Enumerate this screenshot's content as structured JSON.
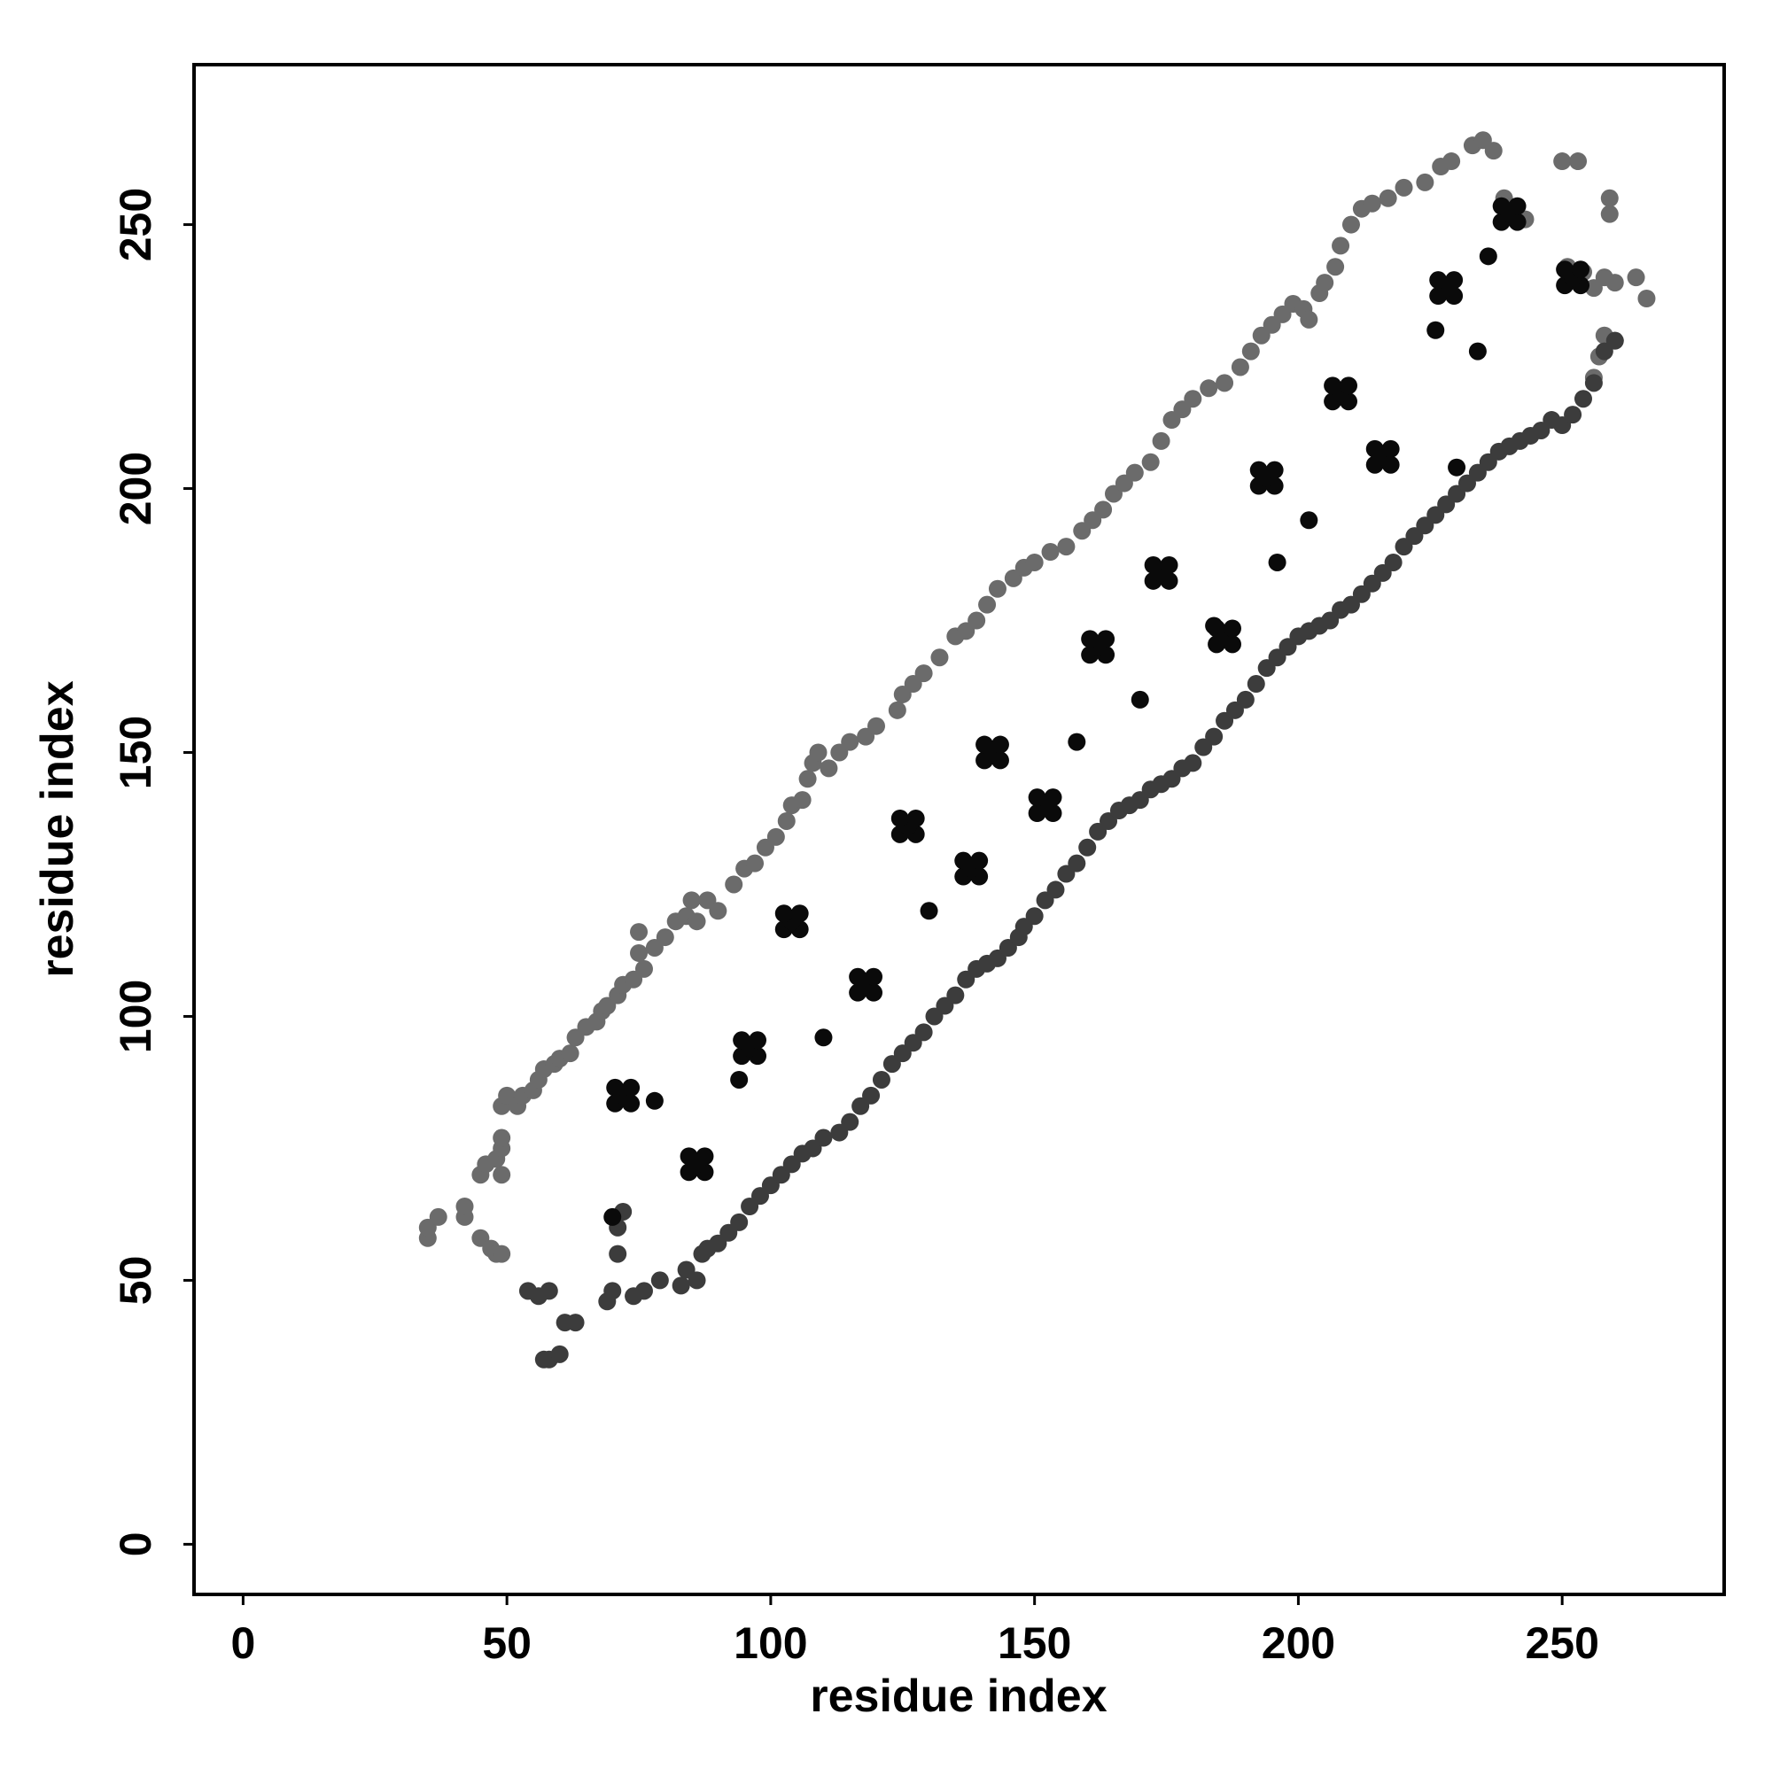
{
  "chart_data": {
    "type": "scatter",
    "x_label": "residue index",
    "y_label": "residue index",
    "xlim": [
      -9.3,
      280.7
    ],
    "ylim": [
      -9.5,
      280.3
    ],
    "xticks": [
      0,
      50,
      100,
      150,
      200,
      250
    ],
    "yticks": [
      0,
      50,
      100,
      150,
      200,
      250
    ],
    "series": [
      {
        "color": "#6b6b6b",
        "x": [
          35,
          35,
          37,
          42,
          42,
          45,
          47,
          48,
          49,
          45,
          46,
          48,
          49,
          49,
          49,
          49,
          50,
          52,
          53,
          55,
          56,
          57,
          59,
          60,
          62,
          63,
          65,
          67,
          68,
          69,
          71,
          72,
          74,
          76,
          75,
          75,
          78,
          80,
          82,
          84,
          85,
          86,
          88,
          90,
          93,
          95,
          97,
          99,
          101,
          103,
          104,
          106,
          107,
          108,
          109,
          111,
          113,
          115,
          118,
          120,
          124,
          125,
          127,
          129,
          132,
          135,
          137,
          139,
          141,
          143,
          146,
          148,
          150,
          153,
          156,
          159,
          161,
          163,
          165,
          167,
          169,
          172,
          174,
          176,
          178,
          180,
          183,
          186,
          189,
          191,
          193,
          195,
          197,
          199,
          201,
          202,
          204,
          205,
          207,
          208,
          210,
          212,
          214,
          217,
          220,
          224,
          227,
          229,
          233,
          235,
          237,
          239,
          241,
          243,
          250,
          253,
          259,
          259,
          251,
          254,
          256,
          258,
          260,
          264,
          266,
          258,
          260,
          257,
          256
        ],
        "values": [
          58,
          60,
          62,
          62,
          64,
          58,
          56,
          55,
          55,
          70,
          72,
          73,
          70,
          75,
          77,
          83,
          85,
          83,
          85,
          86,
          88,
          90,
          91,
          92,
          93,
          96,
          98,
          99,
          101,
          102,
          104,
          106,
          107,
          109,
          112,
          116,
          113,
          115,
          118,
          119,
          122,
          118,
          122,
          120,
          125,
          128,
          129,
          132,
          134,
          137,
          140,
          141,
          145,
          148,
          150,
          147,
          150,
          152,
          153,
          155,
          158,
          161,
          163,
          165,
          168,
          172,
          173,
          175,
          178,
          181,
          183,
          185,
          186,
          188,
          189,
          192,
          194,
          196,
          199,
          201,
          203,
          205,
          209,
          213,
          215,
          217,
          219,
          220,
          223,
          226,
          229,
          231,
          233,
          235,
          234,
          232,
          237,
          239,
          242,
          246,
          250,
          253,
          254,
          255,
          257,
          258,
          261,
          262,
          265,
          266,
          264,
          255,
          253,
          251,
          262,
          262,
          255,
          252,
          242,
          241,
          238,
          240,
          239,
          240,
          236,
          229,
          228,
          225,
          221
        ]
      },
      {
        "color": "#3c3c3c",
        "x": [
          57,
          58,
          60,
          61,
          63,
          54,
          56,
          58,
          69,
          70,
          71,
          71,
          72,
          74,
          76,
          79,
          83,
          84,
          86,
          87,
          88,
          90,
          92,
          94,
          96,
          98,
          100,
          102,
          104,
          106,
          108,
          110,
          113,
          115,
          117,
          119,
          121,
          123,
          125,
          127,
          129,
          131,
          133,
          135,
          137,
          139,
          141,
          143,
          145,
          147,
          148,
          150,
          152,
          154,
          156,
          158,
          160,
          162,
          164,
          166,
          168,
          170,
          172,
          174,
          176,
          178,
          180,
          182,
          184,
          186,
          188,
          190,
          192,
          194,
          196,
          198,
          200,
          202,
          204,
          206,
          208,
          210,
          212,
          214,
          216,
          218,
          220,
          222,
          224,
          226,
          228,
          230,
          232,
          234,
          236,
          238,
          240,
          242,
          244,
          246,
          248,
          250,
          252,
          254,
          256,
          258,
          260
        ],
        "values": [
          35,
          35,
          36,
          42,
          42,
          48,
          47,
          48,
          46,
          48,
          55,
          60,
          63,
          47,
          48,
          50,
          49,
          52,
          50,
          55,
          56,
          57,
          59,
          61,
          64,
          66,
          68,
          70,
          72,
          74,
          75,
          77,
          78,
          80,
          83,
          85,
          88,
          91,
          93,
          95,
          97,
          100,
          102,
          104,
          107,
          109,
          110,
          111,
          113,
          115,
          117,
          119,
          122,
          124,
          127,
          129,
          132,
          135,
          137,
          139,
          140,
          141,
          143,
          144,
          145,
          147,
          148,
          151,
          153,
          156,
          158,
          160,
          163,
          166,
          168,
          170,
          172,
          173,
          174,
          175,
          177,
          178,
          180,
          182,
          184,
          186,
          189,
          191,
          193,
          195,
          197,
          199,
          201,
          203,
          205,
          207,
          208,
          209,
          210,
          211,
          213,
          212,
          214,
          217,
          220,
          226,
          228
        ]
      },
      {
        "color": "#0a0a0a",
        "x": [
          70.5,
          73.5,
          72,
          70.5,
          73.5,
          84.5,
          87.5,
          86,
          84.5,
          87.5,
          102.5,
          105.5,
          104,
          102.5,
          105.5,
          116.5,
          119.5,
          118,
          116.5,
          119.5,
          136.5,
          139.5,
          138,
          136.5,
          139.5,
          140.5,
          143.5,
          142,
          140.5,
          143.5,
          150.5,
          153.5,
          152,
          150.5,
          153.5,
          172.5,
          175.5,
          174,
          172.5,
          175.5,
          184.5,
          187.5,
          186,
          184.5,
          187.5,
          206.5,
          209.5,
          208,
          206.5,
          209.5,
          214.5,
          217.5,
          216,
          214.5,
          217.5,
          238.5,
          241.5,
          240,
          238.5,
          241.5,
          250.5,
          253.5,
          252,
          250.5,
          253.5,
          94.5,
          97.5,
          96,
          94.5,
          97.5,
          124.5,
          127.5,
          126,
          124.5,
          127.5,
          160.5,
          163.5,
          162,
          160.5,
          163.5,
          192.5,
          195.5,
          194,
          192.5,
          195.5,
          226.5,
          229.5,
          228,
          226.5,
          229.5,
          70,
          78,
          94,
          110,
          130,
          158,
          184,
          196,
          226,
          236,
          230,
          202,
          170,
          234
        ],
        "values": [
          83.5,
          83.5,
          85,
          86.5,
          86.5,
          70.5,
          70.5,
          72,
          73.5,
          73.5,
          116.5,
          116.5,
          118,
          119.5,
          119.5,
          104.5,
          104.5,
          106,
          107.5,
          107.5,
          126.5,
          126.5,
          128,
          129.5,
          129.5,
          148.5,
          148.5,
          150,
          151.5,
          151.5,
          138.5,
          138.5,
          140,
          141.5,
          141.5,
          182.5,
          182.5,
          184,
          185.5,
          185.5,
          170.5,
          170.5,
          172,
          173.5,
          173.5,
          216.5,
          216.5,
          218,
          219.5,
          219.5,
          204.5,
          204.5,
          206,
          207.5,
          207.5,
          250.5,
          250.5,
          252,
          253.5,
          253.5,
          238.5,
          238.5,
          240,
          241.5,
          241.5,
          92.5,
          92.5,
          94,
          95.5,
          95.5,
          134.5,
          134.5,
          136,
          137.5,
          137.5,
          168.5,
          168.5,
          170,
          171.5,
          171.5,
          200.5,
          200.5,
          202,
          203.5,
          203.5,
          236.5,
          236.5,
          238,
          239.5,
          239.5,
          62,
          84,
          88,
          96,
          120,
          152,
          174,
          186,
          230,
          244,
          204,
          194,
          160,
          226
        ]
      }
    ]
  }
}
